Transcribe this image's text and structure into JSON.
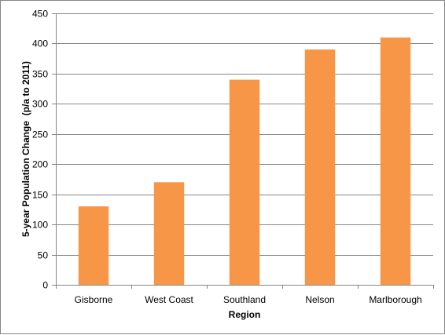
{
  "chart_data": {
    "type": "bar",
    "title": "",
    "xlabel": "Region",
    "ylabel": "5-year Population Change  (p/a to 2011)",
    "categories": [
      "Gisborne",
      "West Coast",
      "Southland",
      "Nelson",
      "Marlborough"
    ],
    "values": [
      130,
      170,
      340,
      390,
      410
    ],
    "ylim": [
      0,
      450
    ],
    "yticks": [
      "0",
      "50",
      "100",
      "150",
      "200",
      "250",
      "300",
      "350",
      "400",
      "450"
    ],
    "grid": true,
    "legend": "none",
    "bar_color": "#F79646"
  }
}
